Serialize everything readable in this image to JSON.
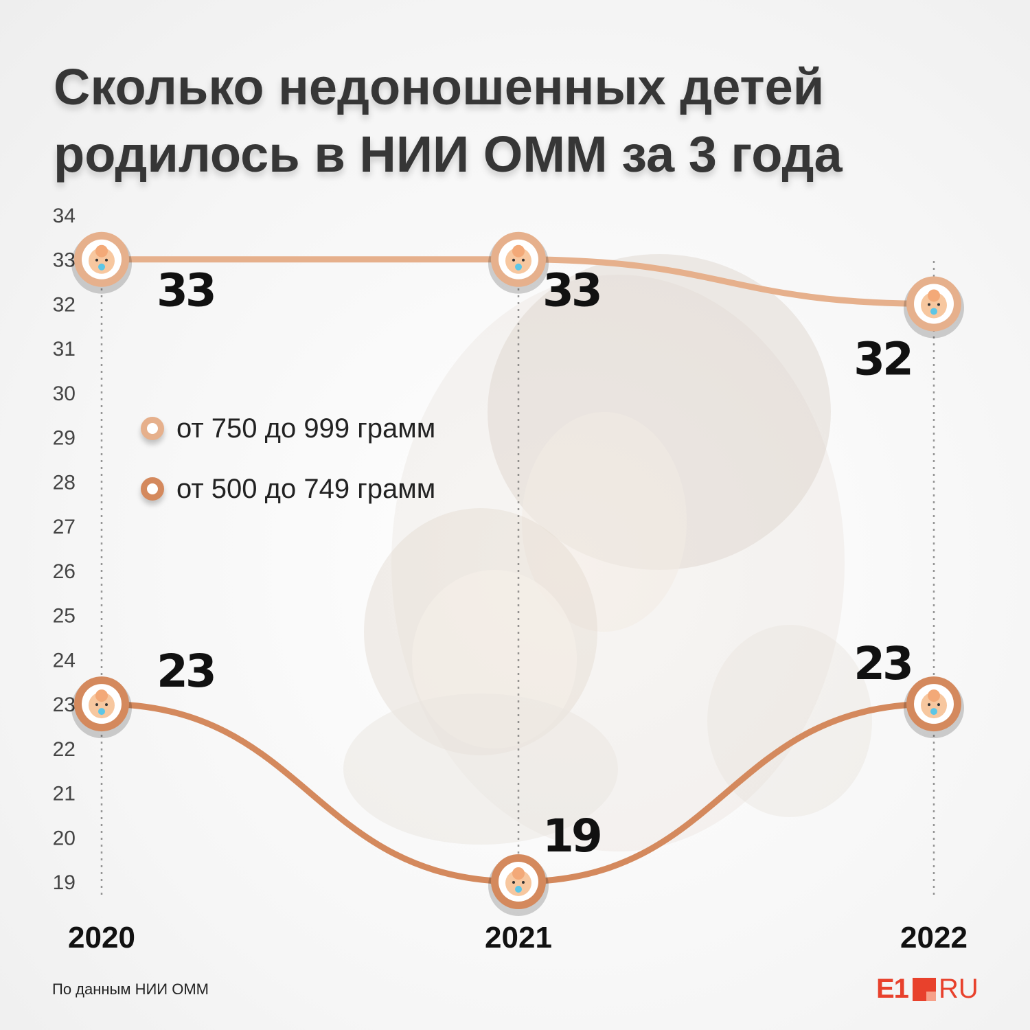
{
  "title": {
    "line1": "Сколько недоношенных детей",
    "line2": "родилось в НИИ ОММ за 3 года"
  },
  "legend": [
    {
      "label": "от 750 до 999 грамм",
      "color": "#e6b08c"
    },
    {
      "label": "от 500 до 749 грамм",
      "color": "#d4895d"
    }
  ],
  "source": "По данным НИИ ОММ",
  "logo": {
    "part1": "E1",
    "part2": "RU"
  },
  "chart_data": {
    "type": "line",
    "title": "Сколько недоношенных детей родилось в НИИ ОММ за 3 года",
    "x": [
      "2020",
      "2021",
      "2022"
    ],
    "yticks": [
      19,
      20,
      21,
      22,
      23,
      24,
      25,
      26,
      27,
      28,
      29,
      30,
      31,
      32,
      33,
      34
    ],
    "ylim": [
      19,
      34
    ],
    "grid": false,
    "legend_position": "left",
    "series": [
      {
        "name": "от 750 до 999 грамм",
        "values": [
          33,
          33,
          32
        ],
        "color": "#e6b08c"
      },
      {
        "name": "от 500 до 749 грамм",
        "values": [
          23,
          19,
          23
        ],
        "color": "#d4895d"
      }
    ]
  }
}
